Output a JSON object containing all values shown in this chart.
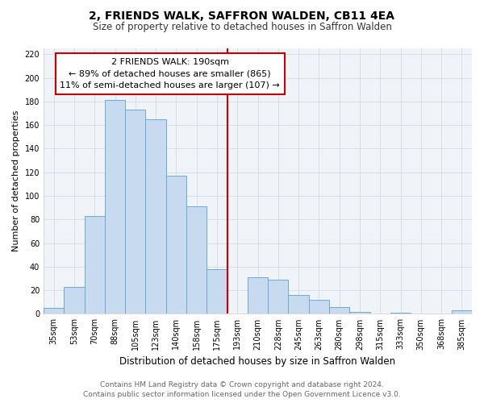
{
  "title": "2, FRIENDS WALK, SAFFRON WALDEN, CB11 4EA",
  "subtitle": "Size of property relative to detached houses in Saffron Walden",
  "xlabel": "Distribution of detached houses by size in Saffron Walden",
  "ylabel": "Number of detached properties",
  "bar_labels": [
    "35sqm",
    "53sqm",
    "70sqm",
    "88sqm",
    "105sqm",
    "123sqm",
    "140sqm",
    "158sqm",
    "175sqm",
    "193sqm",
    "210sqm",
    "228sqm",
    "245sqm",
    "263sqm",
    "280sqm",
    "298sqm",
    "315sqm",
    "333sqm",
    "350sqm",
    "368sqm",
    "385sqm"
  ],
  "bar_values": [
    5,
    23,
    83,
    181,
    173,
    165,
    117,
    91,
    38,
    0,
    31,
    29,
    16,
    12,
    6,
    2,
    0,
    1,
    0,
    0,
    3
  ],
  "bar_color": "#c8daf0",
  "bar_edge_color": "#6aaad4",
  "vline_x": 8.5,
  "vline_color": "#cc0000",
  "ylim": [
    0,
    225
  ],
  "yticks": [
    0,
    20,
    40,
    60,
    80,
    100,
    120,
    140,
    160,
    180,
    200,
    220
  ],
  "annotation_text": "2 FRIENDS WALK: 190sqm\n← 89% of detached houses are smaller (865)\n11% of semi-detached houses are larger (107) →",
  "annotation_box_edgecolor": "#cc0000",
  "footer_line1": "Contains HM Land Registry data © Crown copyright and database right 2024.",
  "footer_line2": "Contains public sector information licensed under the Open Government Licence v3.0.",
  "title_fontsize": 10,
  "subtitle_fontsize": 8.5,
  "xlabel_fontsize": 8.5,
  "ylabel_fontsize": 8,
  "tick_fontsize": 7,
  "annotation_fontsize": 8,
  "footer_fontsize": 6.5,
  "grid_color": "#d0dce8",
  "bg_color": "#f0f4f8"
}
